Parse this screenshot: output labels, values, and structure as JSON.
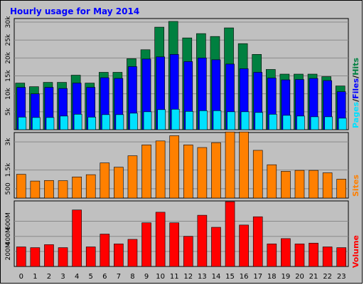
{
  "title": "Hourly usage for May 2014",
  "colors": {
    "background": "#c0c0c0",
    "plot": "#c0c0c0",
    "title": "#0000ff",
    "hits": "#008040",
    "files": "#0000ff",
    "pages": "#00e0ff",
    "sites": "#ff8000",
    "volume": "#ff0000"
  },
  "chart_data": [
    {
      "type": "bar",
      "title": "Hourly usage for May 2014",
      "categories": [
        "0",
        "1",
        "2",
        "3",
        "4",
        "5",
        "6",
        "7",
        "8",
        "9",
        "10",
        "11",
        "12",
        "13",
        "14",
        "15",
        "16",
        "17",
        "18",
        "19",
        "20",
        "21",
        "22",
        "23"
      ],
      "ylabel_parts": [
        "Pages",
        "Files",
        "Hits"
      ],
      "yticks": [
        "5k",
        "10k",
        "15k",
        "20k",
        "25k",
        "30k"
      ],
      "ylim": [
        0,
        31000
      ],
      "grid": true,
      "series": [
        {
          "name": "Hits",
          "values": [
            13000,
            12000,
            13200,
            13200,
            15200,
            13000,
            16000,
            16000,
            19800,
            22300,
            28600,
            30200,
            25600,
            26800,
            26000,
            28400,
            24000,
            21000,
            16800,
            15500,
            15500,
            15500,
            14800,
            12200
          ]
        },
        {
          "name": "Files",
          "values": [
            11800,
            10000,
            11800,
            11500,
            13000,
            11800,
            14500,
            14300,
            17600,
            19700,
            20300,
            21000,
            19000,
            20000,
            19500,
            18300,
            17000,
            16000,
            14400,
            13900,
            14000,
            14300,
            13700,
            10600
          ]
        },
        {
          "name": "Pages",
          "values": [
            3500,
            3400,
            3400,
            3800,
            4300,
            3500,
            4200,
            4200,
            4600,
            5000,
            5600,
            5700,
            5100,
            5300,
            5300,
            5000,
            5000,
            4800,
            4300,
            4000,
            3800,
            3600,
            3600,
            3200
          ]
        }
      ]
    },
    {
      "type": "bar",
      "ylabel": "Sites",
      "yticks": [
        "500",
        "1.5k",
        "3k"
      ],
      "ylim": [
        0,
        3500
      ],
      "grid": true,
      "series": [
        {
          "name": "Sites",
          "values": [
            1270,
            910,
            940,
            930,
            1130,
            1250,
            1880,
            1650,
            2260,
            2840,
            3050,
            3330,
            2840,
            2700,
            2960,
            3530,
            3530,
            2550,
            1780,
            1430,
            1480,
            1480,
            1350,
            1010
          ]
        }
      ]
    },
    {
      "type": "bar",
      "ylabel": "Volume",
      "yticks": [
        "200M",
        "400M",
        "600M"
      ],
      "ylim": [
        0,
        870
      ],
      "grid": true,
      "series": [
        {
          "name": "Volume",
          "values": [
            260,
            250,
            290,
            250,
            750,
            260,
            430,
            300,
            360,
            580,
            720,
            580,
            400,
            680,
            520,
            860,
            550,
            660,
            300,
            370,
            300,
            310,
            260,
            250
          ]
        }
      ]
    }
  ]
}
